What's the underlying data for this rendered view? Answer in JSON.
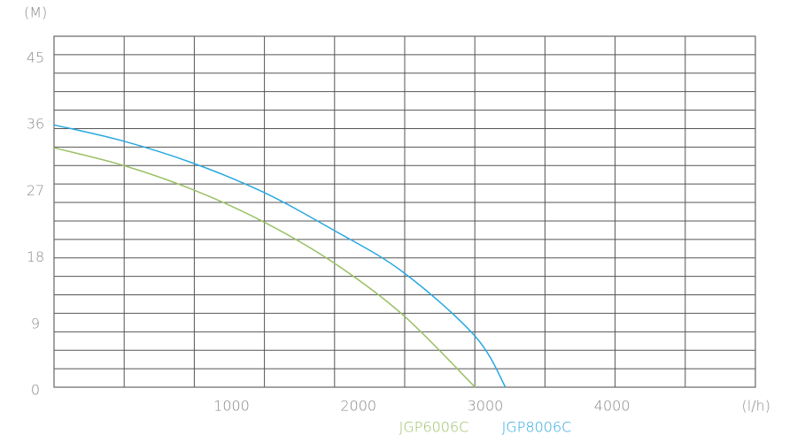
{
  "chart_data": {
    "type": "line",
    "y_label": "(M)",
    "x_label": "(l/h)",
    "xlim": [
      -400,
      5130
    ],
    "xticks": [
      1000,
      2000,
      3000,
      4000
    ],
    "ylim": [
      0,
      47.5
    ],
    "yticks": [
      0,
      9,
      18,
      27,
      36,
      45
    ],
    "series": [
      {
        "name": "JGP6006C",
        "color": "#9bc065",
        "x": [
          -400,
          150,
          700,
          1250,
          1800,
          2350,
          2920
        ],
        "values": [
          32.4,
          30.0,
          26.7,
          22.4,
          16.9,
          9.8,
          0
        ]
      },
      {
        "name": "JGP8006C",
        "color": "#29a8e0",
        "x": [
          -400,
          150,
          700,
          1250,
          1800,
          2350,
          2920,
          3160
        ],
        "values": [
          35.5,
          33.3,
          30.3,
          26.4,
          21.3,
          15.6,
          6.9,
          0
        ]
      }
    ]
  }
}
